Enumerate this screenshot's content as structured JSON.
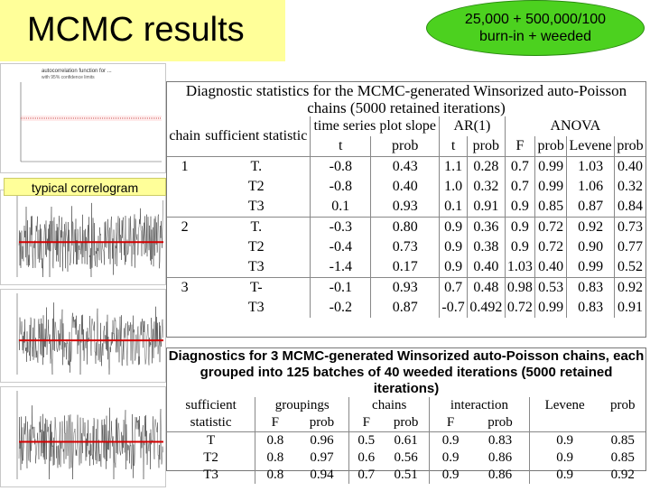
{
  "header": {
    "title": "MCMC results",
    "oval_line1": "25,000 + 500,000/100",
    "oval_line2": "burn-in + weeded"
  },
  "sidebar": {
    "correlogram_label": "typical correlogram",
    "correlogram_title_1": "autocorrelation function for ...",
    "correlogram_title_2": "with 95% confidence limits"
  },
  "colors": {
    "yellow": "#ffff99",
    "green": "#4cd11f",
    "red_line": "#d40000"
  },
  "table1": {
    "title_line1": "Diagnostic statistics for the MCMC-generated Winsorized auto-Poisson",
    "title_line2": "chains (5000 retained iterations)",
    "header1": [
      "chain",
      "sufficient statistic",
      "time series plot slope",
      "AR(1)",
      "ANOVA"
    ],
    "header2": [
      "t",
      "prob",
      "t",
      "prob",
      "F",
      "prob",
      "Levene",
      "prob"
    ],
    "rows": [
      {
        "chain": "1",
        "stat": "T.",
        "cells": [
          "-0.8",
          "0.43",
          "1.1",
          "0.28",
          "0.7",
          "0.99",
          "1.03",
          "0.40"
        ]
      },
      {
        "chain": "",
        "stat": "T2",
        "cells": [
          "-0.8",
          "0.40",
          "1.0",
          "0.32",
          "0.7",
          "0.99",
          "1.06",
          "0.32"
        ]
      },
      {
        "chain": "",
        "stat": "T3",
        "cells": [
          "0.1",
          "0.93",
          "0.1",
          "0.91",
          "0.9",
          "0.85",
          "0.87",
          "0.84"
        ]
      },
      {
        "chain": "2",
        "stat": "T.",
        "cells": [
          "-0.3",
          "0.80",
          "0.9",
          "0.36",
          "0.9",
          "0.72",
          "0.92",
          "0.73"
        ]
      },
      {
        "chain": "",
        "stat": "T2",
        "cells": [
          "-0.4",
          "0.73",
          "0.9",
          "0.38",
          "0.9",
          "0.72",
          "0.90",
          "0.77"
        ]
      },
      {
        "chain": "",
        "stat": "T3",
        "cells": [
          "-1.4",
          "0.17",
          "0.9",
          "0.40",
          "1.03",
          "0.40",
          "0.99",
          "0.52"
        ]
      },
      {
        "chain": "3",
        "stat": "T-",
        "cells": [
          "-0.1",
          "0.93",
          "0.7",
          "0.48",
          "0.98",
          "0.53",
          "0.83",
          "0.92"
        ]
      },
      {
        "chain": "",
        "stat": "T3",
        "cells": [
          "-0.2",
          "0.87",
          "-0.7",
          "0.492",
          "0.72",
          "0.99",
          "0.83",
          "0.91"
        ]
      }
    ]
  },
  "table2": {
    "title_line1": "Diagnostics for 3 MCMC-generated Winsorized auto-Poisson chains, each",
    "title_line2": "grouped into 125 batches of 40 weeded iterations (5000 retained iterations)",
    "header1": [
      "sufficient",
      "groupings",
      "chains",
      "interaction",
      "Levene",
      "prob"
    ],
    "header2": [
      "statistic",
      "F",
      "prob",
      "F",
      "prob",
      "F",
      "prob"
    ],
    "rows": [
      {
        "stat": "T",
        "cells": [
          "0.8",
          "0.96",
          "0.5",
          "0.61",
          "0.9",
          "0.83",
          "0.9",
          "0.85"
        ]
      },
      {
        "stat": "T2",
        "cells": [
          "0.8",
          "0.97",
          "0.6",
          "0.56",
          "0.9",
          "0.86",
          "0.9",
          "0.85"
        ]
      },
      {
        "stat": "T3",
        "cells": [
          "0.8",
          "0.94",
          "0.7",
          "0.51",
          "0.9",
          "0.86",
          "0.9",
          "0.92"
        ]
      }
    ]
  }
}
